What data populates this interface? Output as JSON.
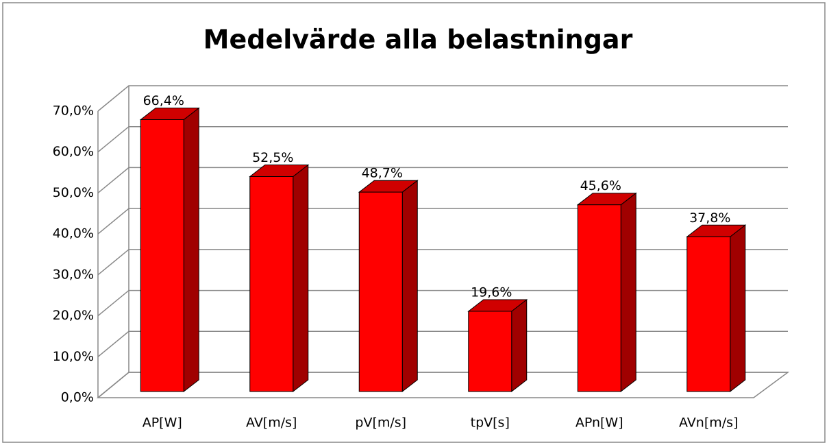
{
  "chart_data": {
    "type": "bar3d",
    "title": "Medelvärde alla belastningar",
    "categories": [
      "AP[W]",
      "AV[m/s]",
      "pV[m/s]",
      "tpV[s]",
      "APn[W]",
      "AVn[m/s]"
    ],
    "values": [
      66.4,
      52.5,
      48.7,
      19.6,
      45.6,
      37.8
    ],
    "value_labels": [
      "66,4%",
      "52,5%",
      "48,7%",
      "19,6%",
      "45,6%",
      "37,8%"
    ],
    "color": "#ff0000",
    "ylim": [
      0,
      70
    ],
    "yticks": [
      {
        "value": 0,
        "label": "0,0%"
      },
      {
        "value": 10,
        "label": "10,0%"
      },
      {
        "value": 20,
        "label": "20,0%"
      },
      {
        "value": 30,
        "label": "30,0%"
      },
      {
        "value": 40,
        "label": "40,0%"
      },
      {
        "value": 50,
        "label": "50,0%"
      },
      {
        "value": 60,
        "label": "60,0%"
      },
      {
        "value": 70,
        "label": "70,0%"
      }
    ],
    "grid": true
  }
}
